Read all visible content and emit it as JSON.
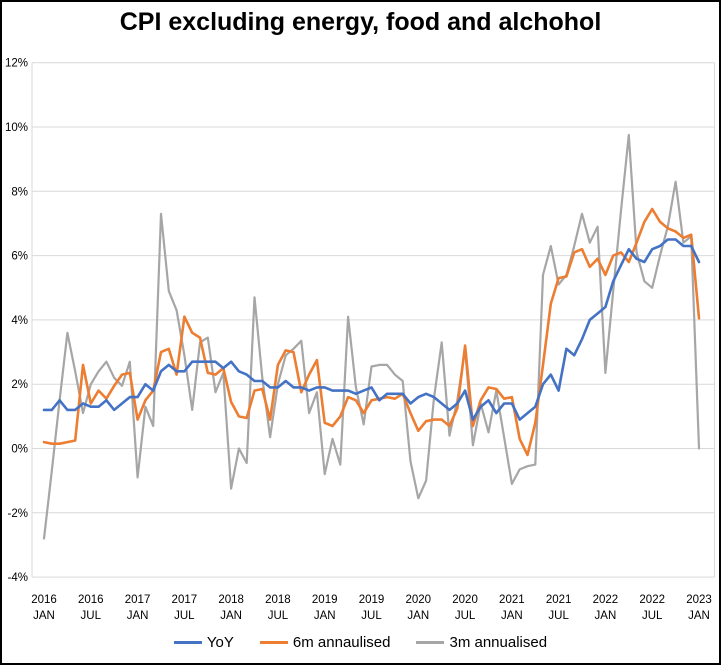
{
  "title": "CPI excluding energy, food and alchohol",
  "legend": {
    "items": [
      "YoY",
      "6m annaulised",
      "3m annualised"
    ]
  },
  "chart_data": {
    "type": "line",
    "title": "CPI excluding energy, food and alchohol",
    "grid": true,
    "legend_position": "bottom",
    "ylim": [
      -4,
      12
    ],
    "y_ticks": {
      "labels": [
        "12%",
        "10%",
        "8%",
        "6%",
        "4%",
        "2%",
        "0%",
        "-2%",
        "-4%"
      ],
      "values": [
        12,
        10,
        8,
        6,
        4,
        2,
        0,
        -2,
        -4
      ]
    },
    "x_ticks": [
      {
        "year": "2016",
        "month": "JAN",
        "month_index": 0
      },
      {
        "year": "2016",
        "month": "JUL",
        "month_index": 6
      },
      {
        "year": "2017",
        "month": "JAN",
        "month_index": 12
      },
      {
        "year": "2017",
        "month": "JUL",
        "month_index": 18
      },
      {
        "year": "2018",
        "month": "JAN",
        "month_index": 24
      },
      {
        "year": "2018",
        "month": "JUL",
        "month_index": 30
      },
      {
        "year": "2019",
        "month": "JAN",
        "month_index": 36
      },
      {
        "year": "2019",
        "month": "JUL",
        "month_index": 42
      },
      {
        "year": "2020",
        "month": "JAN",
        "month_index": 48
      },
      {
        "year": "2020",
        "month": "JUL",
        "month_index": 54
      },
      {
        "year": "2021",
        "month": "JAN",
        "month_index": 60
      },
      {
        "year": "2021",
        "month": "JUL",
        "month_index": 66
      },
      {
        "year": "2022",
        "month": "JAN",
        "month_index": 72
      },
      {
        "year": "2022",
        "month": "JUL",
        "month_index": 78
      },
      {
        "year": "2023",
        "month": "JAN",
        "month_index": 84
      }
    ],
    "x_start": "2016 JAN",
    "x_end": "2023 JAN",
    "x_frequency": "monthly",
    "series": [
      {
        "name": "YoY",
        "color": "#4472C4",
        "values": [
          1.2,
          1.2,
          1.5,
          1.2,
          1.2,
          1.4,
          1.3,
          1.3,
          1.5,
          1.2,
          1.4,
          1.6,
          1.6,
          2.0,
          1.8,
          2.4,
          2.6,
          2.4,
          2.4,
          2.7,
          2.7,
          2.7,
          2.7,
          2.5,
          2.7,
          2.4,
          2.3,
          2.1,
          2.1,
          1.9,
          1.9,
          2.1,
          1.9,
          1.9,
          1.8,
          1.9,
          1.9,
          1.8,
          1.8,
          1.8,
          1.7,
          1.8,
          1.9,
          1.5,
          1.7,
          1.7,
          1.7,
          1.4,
          1.6,
          1.7,
          1.6,
          1.4,
          1.2,
          1.4,
          1.8,
          0.9,
          1.3,
          1.5,
          1.1,
          1.4,
          1.4,
          0.9,
          1.1,
          1.3,
          2.0,
          2.3,
          1.8,
          3.1,
          2.9,
          3.4,
          4.0,
          4.2,
          4.4,
          5.2,
          5.7,
          6.2,
          5.9,
          5.8,
          6.2,
          6.3,
          6.5,
          6.5,
          6.3,
          6.3,
          5.8
        ]
      },
      {
        "name": "6m annaulised",
        "color": "#ED7D31",
        "values": [
          0.2,
          0.15,
          0.15,
          0.2,
          0.25,
          2.6,
          1.4,
          1.8,
          1.55,
          1.95,
          2.3,
          2.35,
          0.9,
          1.5,
          1.8,
          3.0,
          3.1,
          2.3,
          4.1,
          3.6,
          3.45,
          2.35,
          2.3,
          2.5,
          1.45,
          1.0,
          0.95,
          1.8,
          1.85,
          0.9,
          2.6,
          3.05,
          3.0,
          1.75,
          2.3,
          2.75,
          0.8,
          0.7,
          1.0,
          1.6,
          1.5,
          1.1,
          1.5,
          1.55,
          1.6,
          1.55,
          1.7,
          1.1,
          0.55,
          0.85,
          0.9,
          0.9,
          0.7,
          1.25,
          3.2,
          0.7,
          1.5,
          1.9,
          1.85,
          1.55,
          1.6,
          0.3,
          -0.2,
          0.8,
          2.6,
          4.5,
          5.3,
          5.35,
          6.1,
          6.2,
          5.65,
          5.9,
          5.4,
          6.0,
          6.1,
          5.8,
          6.4,
          7.05,
          7.45,
          7.05,
          6.85,
          6.75,
          6.55,
          6.65,
          4.05
        ]
      },
      {
        "name": "3m annualised",
        "color": "#A6A6A6",
        "values": [
          -2.8,
          -0.7,
          1.5,
          3.6,
          2.4,
          1.1,
          2.0,
          2.4,
          2.7,
          2.2,
          1.95,
          2.7,
          -0.9,
          1.3,
          0.7,
          7.3,
          4.9,
          4.3,
          2.9,
          1.2,
          3.3,
          3.45,
          1.75,
          2.35,
          -1.25,
          0.0,
          -0.45,
          4.7,
          2.2,
          0.35,
          2.0,
          2.9,
          3.1,
          3.35,
          1.1,
          1.75,
          -0.8,
          0.3,
          -0.5,
          4.1,
          1.9,
          0.75,
          2.55,
          2.6,
          2.6,
          2.3,
          2.1,
          -0.4,
          -1.55,
          -1.0,
          1.55,
          3.3,
          0.4,
          1.5,
          3.1,
          0.1,
          1.4,
          0.5,
          1.8,
          0.35,
          -1.1,
          -0.65,
          -0.55,
          -0.5,
          5.4,
          6.3,
          5.1,
          5.4,
          6.3,
          7.3,
          6.4,
          6.9,
          2.35,
          4.9,
          7.4,
          9.75,
          6.1,
          5.2,
          5.0,
          6.0,
          6.9,
          8.3,
          6.4,
          6.6,
          0.0
        ]
      }
    ]
  },
  "colors": {
    "gridline": "#D9D9D9",
    "axis_text": "#000000",
    "background": "#FFFFFF",
    "border": "#000000"
  }
}
